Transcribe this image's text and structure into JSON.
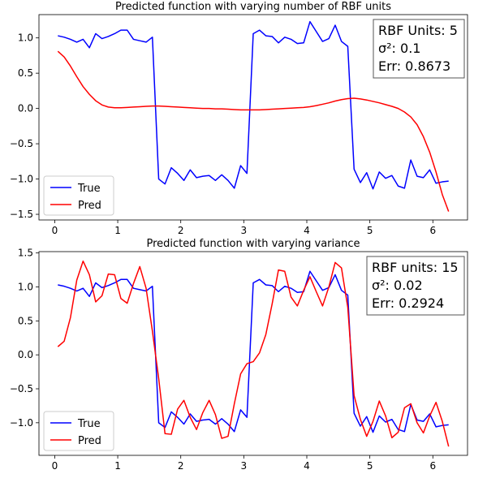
{
  "chart_data": [
    {
      "type": "line",
      "title": "Predicted function with varying number of RBF units",
      "xlabel": "",
      "ylabel": "",
      "xlim": [
        -0.25,
        6.55
      ],
      "ylim": [
        -1.58,
        1.33
      ],
      "xticks": [
        0,
        1,
        2,
        3,
        4,
        5,
        6
      ],
      "yticks": [
        -1.5,
        -1.0,
        -0.5,
        0.0,
        0.5,
        1.0
      ],
      "ytick_labels": [
        "−1.5",
        "−1.0",
        "−0.5",
        "0.0",
        "0.5",
        "1.0"
      ],
      "grid": false,
      "legend_position": "lower-left",
      "series": [
        {
          "name": "True",
          "color": "#0000ff",
          "x": [
            0.05,
            0.15,
            0.25,
            0.35,
            0.45,
            0.55,
            0.65,
            0.75,
            0.85,
            0.95,
            1.05,
            1.15,
            1.25,
            1.35,
            1.45,
            1.55,
            1.65,
            1.75,
            1.85,
            1.95,
            2.05,
            2.15,
            2.25,
            2.35,
            2.45,
            2.55,
            2.65,
            2.75,
            2.85,
            2.95,
            3.05,
            3.15,
            3.25,
            3.35,
            3.45,
            3.55,
            3.65,
            3.75,
            3.85,
            3.95,
            4.05,
            4.15,
            4.25,
            4.35,
            4.45,
            4.55,
            4.65,
            4.75,
            4.85,
            4.95,
            5.05,
            5.15,
            5.25,
            5.35,
            5.45,
            5.55,
            5.65,
            5.75,
            5.85,
            5.95,
            6.05,
            6.15,
            6.25
          ],
          "y": [
            1.03,
            1.01,
            0.98,
            0.94,
            0.98,
            0.86,
            1.06,
            0.99,
            1.02,
            1.06,
            1.11,
            1.11,
            0.98,
            0.96,
            0.94,
            1.01,
            -1.0,
            -1.07,
            -0.84,
            -0.92,
            -1.02,
            -0.87,
            -0.98,
            -0.96,
            -0.95,
            -1.02,
            -0.94,
            -1.02,
            -1.13,
            -0.81,
            -0.92,
            1.06,
            1.11,
            1.03,
            1.02,
            0.93,
            1.01,
            0.98,
            0.92,
            0.93,
            1.23,
            1.09,
            0.95,
            0.99,
            1.18,
            0.95,
            0.88,
            -0.86,
            -1.05,
            -0.91,
            -1.14,
            -0.9,
            -0.99,
            -0.95,
            -1.1,
            -1.13,
            -0.73,
            -0.96,
            -0.98,
            -0.87,
            -1.06,
            -1.04,
            -1.03
          ]
        },
        {
          "name": "Pred",
          "color": "#ff0000",
          "x": [
            0.05,
            0.15,
            0.25,
            0.35,
            0.45,
            0.55,
            0.65,
            0.75,
            0.85,
            0.95,
            1.05,
            1.15,
            1.25,
            1.35,
            1.45,
            1.55,
            1.65,
            1.75,
            1.85,
            1.95,
            2.05,
            2.15,
            2.25,
            2.35,
            2.45,
            2.55,
            2.65,
            2.75,
            2.85,
            2.95,
            3.05,
            3.15,
            3.25,
            3.35,
            3.45,
            3.55,
            3.65,
            3.75,
            3.85,
            3.95,
            4.05,
            4.15,
            4.25,
            4.35,
            4.45,
            4.55,
            4.65,
            4.75,
            4.85,
            4.95,
            5.05,
            5.15,
            5.25,
            5.35,
            5.45,
            5.55,
            5.65,
            5.75,
            5.85,
            5.95,
            6.05,
            6.15,
            6.25
          ],
          "y": [
            0.81,
            0.73,
            0.6,
            0.45,
            0.31,
            0.2,
            0.11,
            0.05,
            0.02,
            0.01,
            0.01,
            0.015,
            0.02,
            0.025,
            0.03,
            0.035,
            0.035,
            0.03,
            0.025,
            0.02,
            0.015,
            0.01,
            0.005,
            0.0,
            0.0,
            -0.005,
            -0.005,
            -0.01,
            -0.015,
            -0.02,
            -0.02,
            -0.02,
            -0.02,
            -0.015,
            -0.01,
            -0.005,
            0.0,
            0.005,
            0.01,
            0.015,
            0.025,
            0.04,
            0.06,
            0.08,
            0.105,
            0.125,
            0.14,
            0.145,
            0.135,
            0.12,
            0.1,
            0.08,
            0.055,
            0.03,
            0.0,
            -0.05,
            -0.12,
            -0.23,
            -0.4,
            -0.62,
            -0.9,
            -1.22,
            -1.46
          ]
        }
      ],
      "annotation": {
        "lines": [
          "RBF Units: 5",
          "σ²: 0.1",
          "Err: 0.8673"
        ],
        "position": "top-right"
      }
    },
    {
      "type": "line",
      "title": "Predicted function with varying variance",
      "xlabel": "",
      "ylabel": "",
      "xlim": [
        -0.25,
        6.55
      ],
      "ylim": [
        -1.48,
        1.52
      ],
      "xticks": [
        0,
        1,
        2,
        3,
        4,
        5,
        6
      ],
      "yticks": [
        -1.0,
        -0.5,
        0.0,
        0.5,
        1.0,
        1.5
      ],
      "ytick_labels": [
        "−1.0",
        "−0.5",
        "0.0",
        "0.5",
        "1.0",
        "1.5"
      ],
      "grid": false,
      "legend_position": "lower-left",
      "series": [
        {
          "name": "True",
          "color": "#0000ff",
          "x": [
            0.05,
            0.15,
            0.25,
            0.35,
            0.45,
            0.55,
            0.65,
            0.75,
            0.85,
            0.95,
            1.05,
            1.15,
            1.25,
            1.35,
            1.45,
            1.55,
            1.65,
            1.75,
            1.85,
            1.95,
            2.05,
            2.15,
            2.25,
            2.35,
            2.45,
            2.55,
            2.65,
            2.75,
            2.85,
            2.95,
            3.05,
            3.15,
            3.25,
            3.35,
            3.45,
            3.55,
            3.65,
            3.75,
            3.85,
            3.95,
            4.05,
            4.15,
            4.25,
            4.35,
            4.45,
            4.55,
            4.65,
            4.75,
            4.85,
            4.95,
            5.05,
            5.15,
            5.25,
            5.35,
            5.45,
            5.55,
            5.65,
            5.75,
            5.85,
            5.95,
            6.05,
            6.15,
            6.25
          ],
          "y": [
            1.03,
            1.01,
            0.98,
            0.94,
            0.98,
            0.86,
            1.06,
            0.99,
            1.02,
            1.06,
            1.11,
            1.11,
            0.98,
            0.96,
            0.94,
            1.01,
            -1.0,
            -1.07,
            -0.84,
            -0.92,
            -1.02,
            -0.87,
            -0.98,
            -0.96,
            -0.95,
            -1.02,
            -0.94,
            -1.02,
            -1.13,
            -0.81,
            -0.92,
            1.06,
            1.11,
            1.03,
            1.02,
            0.93,
            1.01,
            0.98,
            0.92,
            0.93,
            1.23,
            1.09,
            0.95,
            0.99,
            1.18,
            0.95,
            0.88,
            -0.86,
            -1.05,
            -0.91,
            -1.14,
            -0.9,
            -0.99,
            -0.95,
            -1.1,
            -1.13,
            -0.73,
            -0.96,
            -0.98,
            -0.87,
            -1.06,
            -1.04,
            -1.03
          ]
        },
        {
          "name": "Pred",
          "color": "#ff0000",
          "x": [
            0.05,
            0.15,
            0.25,
            0.35,
            0.45,
            0.55,
            0.65,
            0.75,
            0.85,
            0.95,
            1.05,
            1.15,
            1.25,
            1.35,
            1.45,
            1.55,
            1.65,
            1.75,
            1.85,
            1.95,
            2.05,
            2.15,
            2.25,
            2.35,
            2.45,
            2.55,
            2.65,
            2.75,
            2.85,
            2.95,
            3.05,
            3.15,
            3.25,
            3.35,
            3.45,
            3.55,
            3.65,
            3.75,
            3.85,
            3.95,
            4.05,
            4.15,
            4.25,
            4.35,
            4.45,
            4.55,
            4.65,
            4.75,
            4.85,
            4.95,
            5.05,
            5.15,
            5.25,
            5.35,
            5.45,
            5.55,
            5.65,
            5.75,
            5.85,
            5.95,
            6.05,
            6.15,
            6.25
          ],
          "y": [
            0.12,
            0.2,
            0.55,
            1.1,
            1.38,
            1.18,
            0.78,
            0.87,
            1.19,
            1.18,
            0.83,
            0.76,
            1.05,
            1.3,
            0.98,
            0.35,
            -0.35,
            -1.16,
            -1.17,
            -0.8,
            -0.67,
            -0.92,
            -1.1,
            -0.85,
            -0.67,
            -0.88,
            -1.23,
            -1.2,
            -0.72,
            -0.28,
            -0.13,
            -0.1,
            0.03,
            0.3,
            0.75,
            1.25,
            1.23,
            0.85,
            0.72,
            0.95,
            1.15,
            0.93,
            0.72,
            1.0,
            1.36,
            1.28,
            0.7,
            -0.6,
            -0.95,
            -1.2,
            -0.98,
            -0.68,
            -0.9,
            -1.22,
            -1.14,
            -0.78,
            -0.72,
            -1.0,
            -1.15,
            -0.9,
            -0.7,
            -0.98,
            -1.35
          ]
        }
      ],
      "annotation": {
        "lines": [
          "RBF units: 15",
          "σ²: 0.02",
          "Err: 0.2924"
        ],
        "position": "top-right"
      }
    }
  ]
}
